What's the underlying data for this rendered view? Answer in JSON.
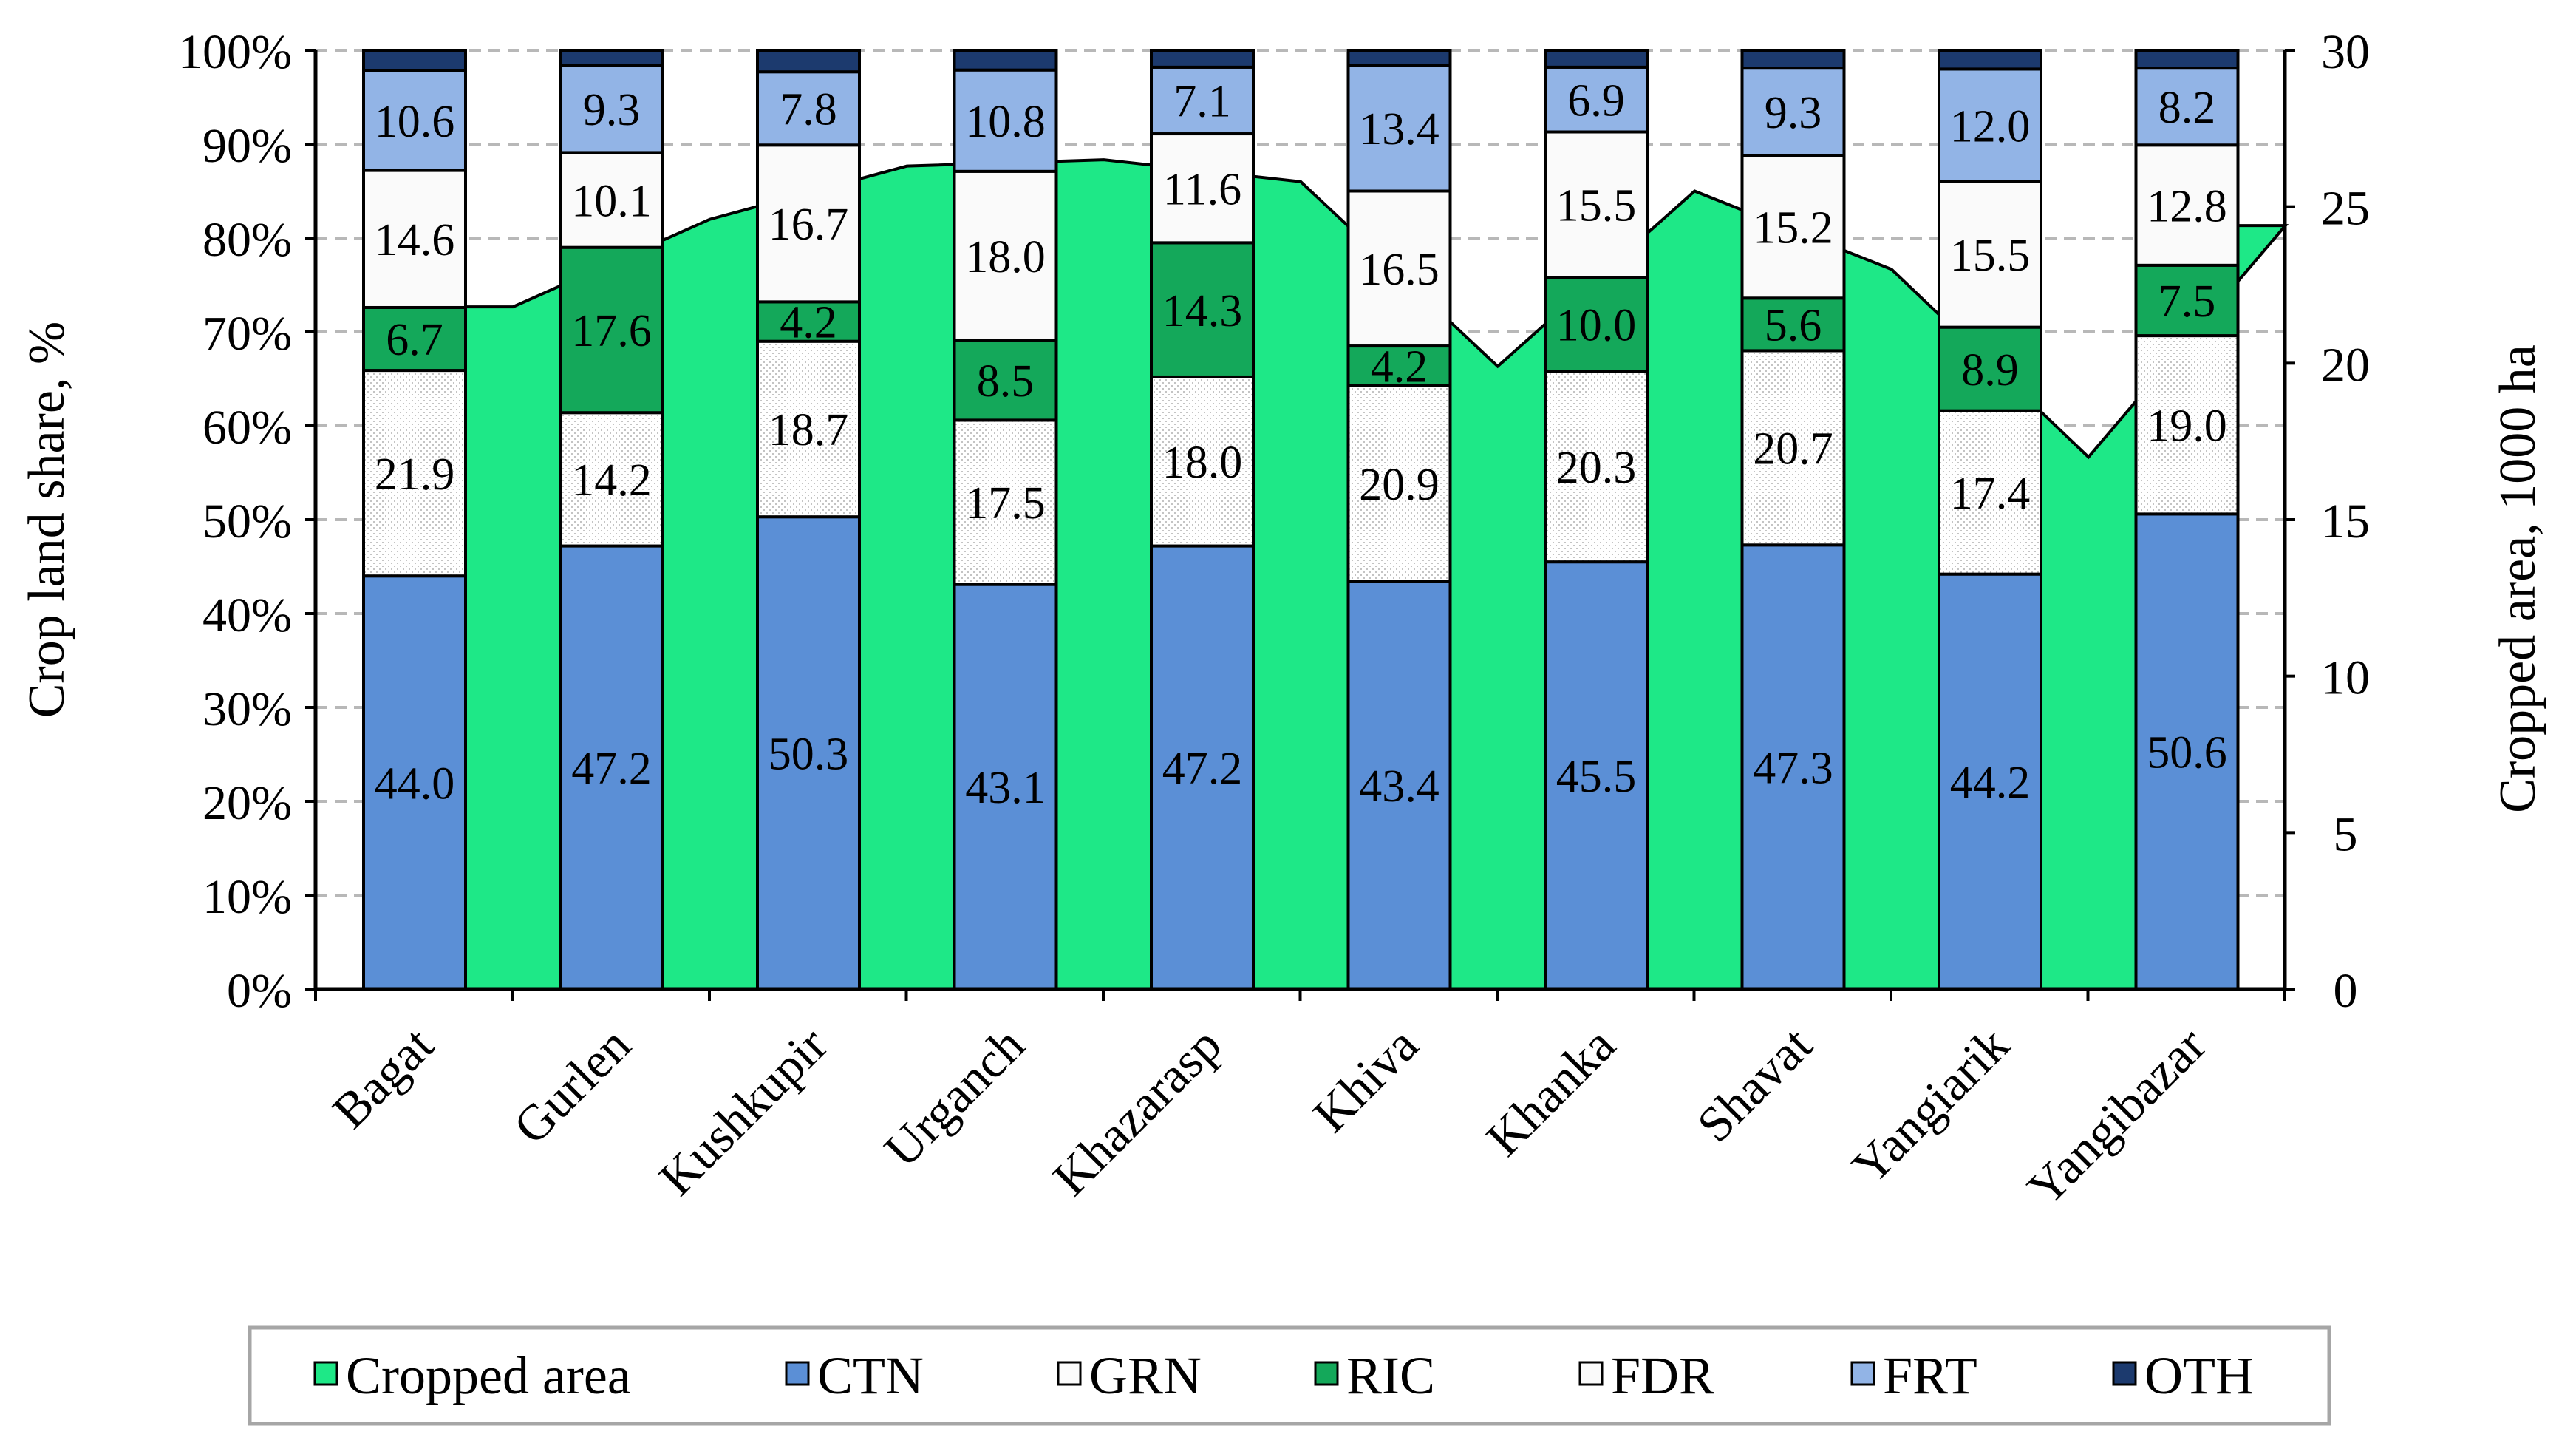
{
  "chart_data": {
    "type": "stacked-bar-with-area",
    "categories": [
      "Bagat",
      "Gurlen",
      "Kushkupir",
      "Urganch",
      "Khazarasp",
      "Khiva",
      "Khanka",
      "Shavat",
      "Yangiarik",
      "Yangibazar"
    ],
    "ylabel": "Crop land share, %",
    "y2label": "Cropped area, 1000 ha",
    "ylim": [
      0,
      100
    ],
    "y2lim": [
      0,
      30
    ],
    "yticks": [
      "0%",
      "10%",
      "20%",
      "30%",
      "40%",
      "50%",
      "60%",
      "70%",
      "80%",
      "90%",
      "100%"
    ],
    "y2ticks": [
      "0",
      "5",
      "10",
      "15",
      "20",
      "25",
      "30"
    ],
    "series": [
      {
        "name": "CTN",
        "color": "#5b8fd6",
        "values": [
          44.0,
          47.2,
          50.3,
          43.1,
          47.2,
          43.4,
          45.5,
          47.3,
          44.2,
          50.6
        ],
        "labels": [
          "44.0",
          "47.2",
          "50.3",
          "43.1",
          "47.2",
          "43.4",
          "45.5",
          "47.3",
          "44.2",
          "50.6"
        ]
      },
      {
        "name": "GRN",
        "color": "#fcfcfc",
        "pattern": "dotted",
        "values": [
          21.9,
          14.2,
          18.7,
          17.5,
          18.0,
          20.9,
          20.3,
          20.7,
          17.4,
          19.0
        ],
        "labels": [
          "21.9",
          "14.2",
          "18.7",
          "17.5",
          "18.0",
          "20.9",
          "20.3",
          "20.7",
          "17.4",
          "19.0"
        ]
      },
      {
        "name": "RIC",
        "color": "#14a85a",
        "values": [
          6.7,
          17.6,
          4.2,
          8.5,
          14.3,
          4.2,
          10.0,
          5.6,
          8.9,
          7.5
        ],
        "labels": [
          "6.7",
          "17.6",
          "4.2",
          "8.5",
          "14.3",
          "4.2",
          "10.0",
          "5.6",
          "8.9",
          "7.5"
        ]
      },
      {
        "name": "FDR",
        "color": "#fafafa",
        "values": [
          14.6,
          10.1,
          16.7,
          18.0,
          11.6,
          16.5,
          15.5,
          15.2,
          15.5,
          12.8
        ],
        "labels": [
          "14.6",
          "10.1",
          "16.7",
          "18.0",
          "11.6",
          "16.5",
          "15.5",
          "15.2",
          "15.5",
          "12.8"
        ]
      },
      {
        "name": "FRT",
        "color": "#92b4e6",
        "values": [
          10.6,
          9.3,
          7.8,
          10.8,
          7.1,
          13.4,
          6.9,
          9.3,
          12.0,
          8.2
        ],
        "labels": [
          "10.6",
          "9.3",
          "7.8",
          "10.8",
          "7.1",
          "13.4",
          "6.9",
          "9.3",
          "12.0",
          "8.2"
        ]
      },
      {
        "name": "OTH",
        "color": "#1c3a6e",
        "values": [
          2.2,
          1.6,
          2.3,
          2.1,
          1.8,
          1.6,
          1.8,
          1.9,
          2.0,
          1.9
        ],
        "labels": []
      }
    ],
    "area": {
      "name": "Cropped area",
      "color": "#1ee887",
      "values": [
        21.8,
        24.6,
        26.3,
        26.5,
        25.8,
        19.9,
        25.5,
        23.0,
        17.0,
        24.4
      ]
    },
    "legend": {
      "position": "bottom",
      "items": [
        {
          "label": "Cropped area",
          "color": "#1ee887"
        },
        {
          "label": "CTN",
          "color": "#5b8fd6"
        },
        {
          "label": "GRN",
          "color": "#fcfcfc"
        },
        {
          "label": "RIC",
          "color": "#14a85a"
        },
        {
          "label": "FDR",
          "color": "#fafafa"
        },
        {
          "label": "FRT",
          "color": "#92b4e6"
        },
        {
          "label": "OTH",
          "color": "#1c3a6e"
        }
      ]
    },
    "gridlines": true
  }
}
